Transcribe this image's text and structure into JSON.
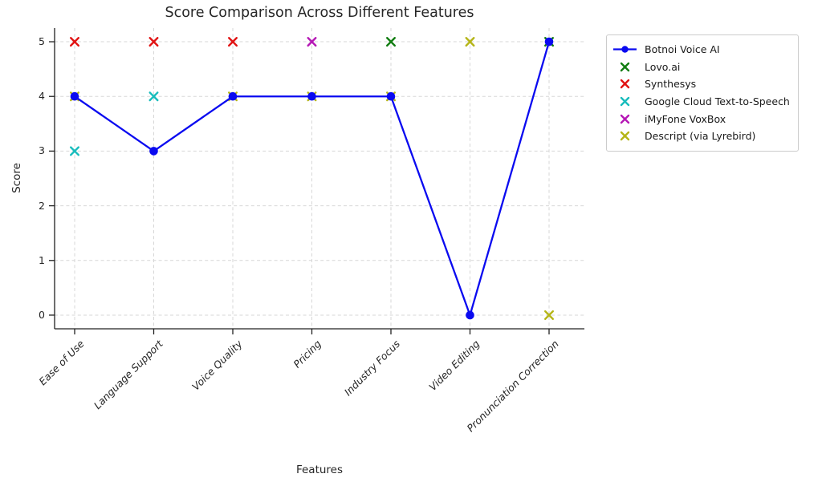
{
  "chart_data": {
    "type": "line",
    "title": "Score Comparison Across Different Features",
    "xlabel": "Features",
    "ylabel": "Score",
    "categories": [
      "Ease of Use",
      "Language Support",
      "Voice Quality",
      "Pricing",
      "Industry Focus",
      "Video Editing",
      "Pronunciation Correction"
    ],
    "yticks": [
      0,
      1,
      2,
      3,
      4,
      5
    ],
    "ylim": [
      -0.25,
      5.25
    ],
    "grid": "dashed both axes",
    "legend_position": "outside upper right",
    "series": [
      {
        "name": "Botnoi Voice AI",
        "color": "#0a0af0",
        "marker": "circle",
        "line": true,
        "values": [
          4,
          3,
          4,
          4,
          4,
          0,
          5
        ]
      },
      {
        "name": "Lovo.ai",
        "color": "#127d12",
        "marker": "x",
        "line": false,
        "values": [
          null,
          null,
          null,
          null,
          5,
          null,
          5
        ]
      },
      {
        "name": "Synthesys",
        "color": "#e11414",
        "marker": "x",
        "line": false,
        "values": [
          5,
          5,
          5,
          null,
          null,
          null,
          null
        ]
      },
      {
        "name": "Google Cloud Text-to-Speech",
        "color": "#18bcbc",
        "marker": "x",
        "line": false,
        "values": [
          3,
          4,
          null,
          null,
          null,
          null,
          null
        ]
      },
      {
        "name": "iMyFone VoxBox",
        "color": "#b517b5",
        "marker": "x",
        "line": false,
        "values": [
          null,
          null,
          null,
          5,
          null,
          null,
          null
        ]
      },
      {
        "name": "Descript (via Lyrebird)",
        "color": "#b5b517",
        "marker": "x",
        "line": false,
        "values": [
          4,
          null,
          4,
          4,
          4,
          5,
          0
        ]
      }
    ],
    "colors": {
      "gridline": "#d7d7d7",
      "spine": "#202020",
      "tick_label": "#262626"
    }
  }
}
